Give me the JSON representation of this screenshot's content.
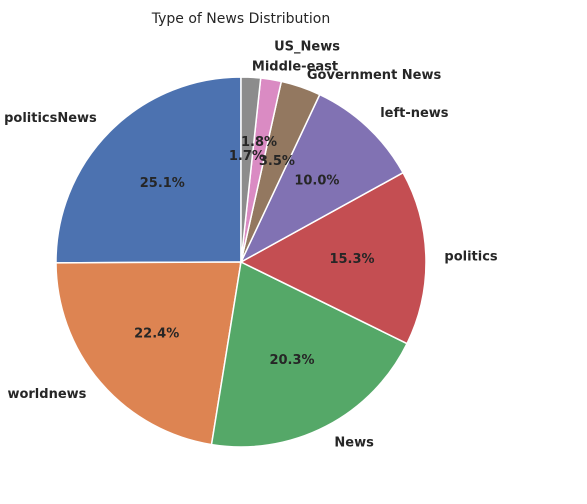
{
  "chart_data": {
    "type": "pie",
    "title": "Type of News Distribution",
    "start_angle_deg": 90,
    "direction": "counterclockwise",
    "slices": [
      {
        "label": "politicsNews",
        "value": 25.1,
        "pct_label": "25.1%",
        "color": "#4c72b0"
      },
      {
        "label": "worldnews",
        "value": 22.4,
        "pct_label": "22.4%",
        "color": "#dd8452"
      },
      {
        "label": "News",
        "value": 20.3,
        "pct_label": "20.3%",
        "color": "#55a868"
      },
      {
        "label": "politics",
        "value": 15.3,
        "pct_label": "15.3%",
        "color": "#c44e52"
      },
      {
        "label": "left-news",
        "value": 10.0,
        "pct_label": "10.0%",
        "color": "#8172b3"
      },
      {
        "label": "Government News",
        "value": 3.5,
        "pct_label": "3.5%",
        "color": "#937860"
      },
      {
        "label": "US_News",
        "value": 1.8,
        "pct_label": "1.8%",
        "color": "#da8bc3"
      },
      {
        "label": "Middle-east",
        "value": 1.7,
        "pct_label": "1.7%",
        "color": "#8c8c8c"
      }
    ]
  }
}
